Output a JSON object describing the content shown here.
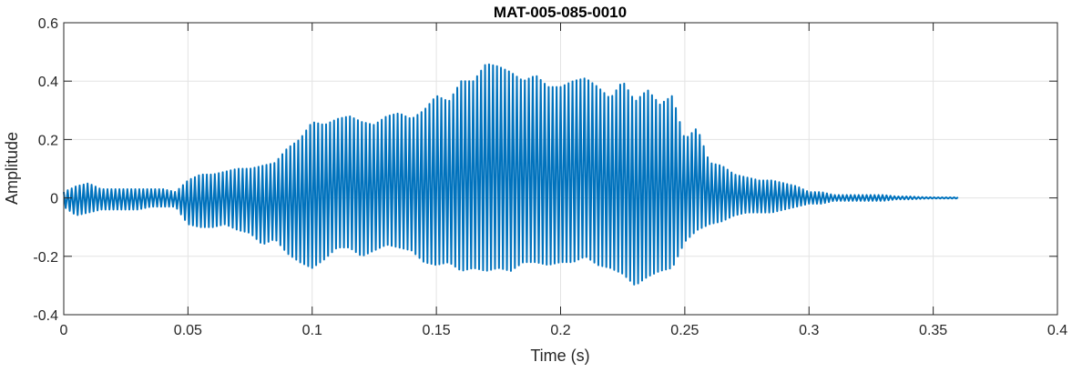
{
  "chart_data": {
    "type": "line",
    "title": "MAT-005-085-0010",
    "xlabel": "Time (s)",
    "ylabel": "Amplitude",
    "xlim": [
      0,
      0.4
    ],
    "ylim": [
      -0.4,
      0.6
    ],
    "x_ticks": [
      0,
      0.05,
      0.1,
      0.15,
      0.2,
      0.25,
      0.3,
      0.35,
      0.4
    ],
    "x_tick_labels": [
      "0",
      "0.05",
      "0.1",
      "0.15",
      "0.2",
      "0.25",
      "0.3",
      "0.35",
      "0.4"
    ],
    "y_ticks": [
      -0.4,
      -0.2,
      0,
      0.2,
      0.4,
      0.6
    ],
    "y_tick_labels": [
      "-0.4",
      "-0.2",
      "0",
      "0.2",
      "0.4",
      "0.6"
    ],
    "grid": true,
    "line_color": "#0072BD",
    "series": [
      {
        "name": "",
        "x": [
          0,
          0.005,
          0.01,
          0.015,
          0.02,
          0.025,
          0.03,
          0.035,
          0.04,
          0.045,
          0.05,
          0.055,
          0.06,
          0.065,
          0.07,
          0.075,
          0.08,
          0.085,
          0.09,
          0.095,
          0.1,
          0.105,
          0.11,
          0.115,
          0.12,
          0.125,
          0.13,
          0.135,
          0.14,
          0.145,
          0.15,
          0.155,
          0.16,
          0.165,
          0.17,
          0.175,
          0.18,
          0.185,
          0.19,
          0.195,
          0.2,
          0.205,
          0.21,
          0.215,
          0.22,
          0.225,
          0.23,
          0.235,
          0.24,
          0.245,
          0.25,
          0.255,
          0.26,
          0.265,
          0.27,
          0.275,
          0.28,
          0.285,
          0.29,
          0.295,
          0.3,
          0.305,
          0.31,
          0.315,
          0.32,
          0.325,
          0.33,
          0.335,
          0.34,
          0.345,
          0.35,
          0.355,
          0.36
        ],
        "y_max": [
          0.02,
          0.04,
          0.05,
          0.03,
          0.03,
          0.03,
          0.03,
          0.03,
          0.03,
          0.02,
          0.06,
          0.08,
          0.08,
          0.09,
          0.1,
          0.1,
          0.11,
          0.12,
          0.17,
          0.2,
          0.26,
          0.25,
          0.27,
          0.28,
          0.26,
          0.25,
          0.28,
          0.29,
          0.27,
          0.3,
          0.35,
          0.33,
          0.4,
          0.4,
          0.46,
          0.45,
          0.43,
          0.4,
          0.42,
          0.38,
          0.38,
          0.4,
          0.41,
          0.38,
          0.34,
          0.4,
          0.33,
          0.37,
          0.32,
          0.35,
          0.2,
          0.24,
          0.12,
          0.11,
          0.08,
          0.07,
          0.06,
          0.06,
          0.05,
          0.04,
          0.02,
          0.02,
          0.01,
          0.01,
          0.01,
          0.01,
          0.01,
          0.005,
          0.005,
          0.003,
          0.002,
          0.002,
          0.002
        ],
        "y_min": [
          -0.03,
          -0.06,
          -0.05,
          -0.04,
          -0.04,
          -0.04,
          -0.04,
          -0.03,
          -0.03,
          -0.03,
          -0.09,
          -0.1,
          -0.1,
          -0.09,
          -0.11,
          -0.12,
          -0.16,
          -0.14,
          -0.19,
          -0.22,
          -0.24,
          -0.21,
          -0.17,
          -0.17,
          -0.2,
          -0.18,
          -0.16,
          -0.17,
          -0.18,
          -0.22,
          -0.23,
          -0.22,
          -0.25,
          -0.24,
          -0.25,
          -0.24,
          -0.25,
          -0.22,
          -0.22,
          -0.23,
          -0.22,
          -0.22,
          -0.2,
          -0.23,
          -0.24,
          -0.26,
          -0.3,
          -0.27,
          -0.25,
          -0.24,
          -0.15,
          -0.11,
          -0.09,
          -0.08,
          -0.06,
          -0.05,
          -0.05,
          -0.05,
          -0.04,
          -0.03,
          -0.02,
          -0.02,
          -0.01,
          -0.01,
          -0.01,
          -0.01,
          -0.01,
          -0.005,
          -0.005,
          -0.003,
          -0.002,
          -0.002,
          -0.002
        ]
      }
    ]
  }
}
